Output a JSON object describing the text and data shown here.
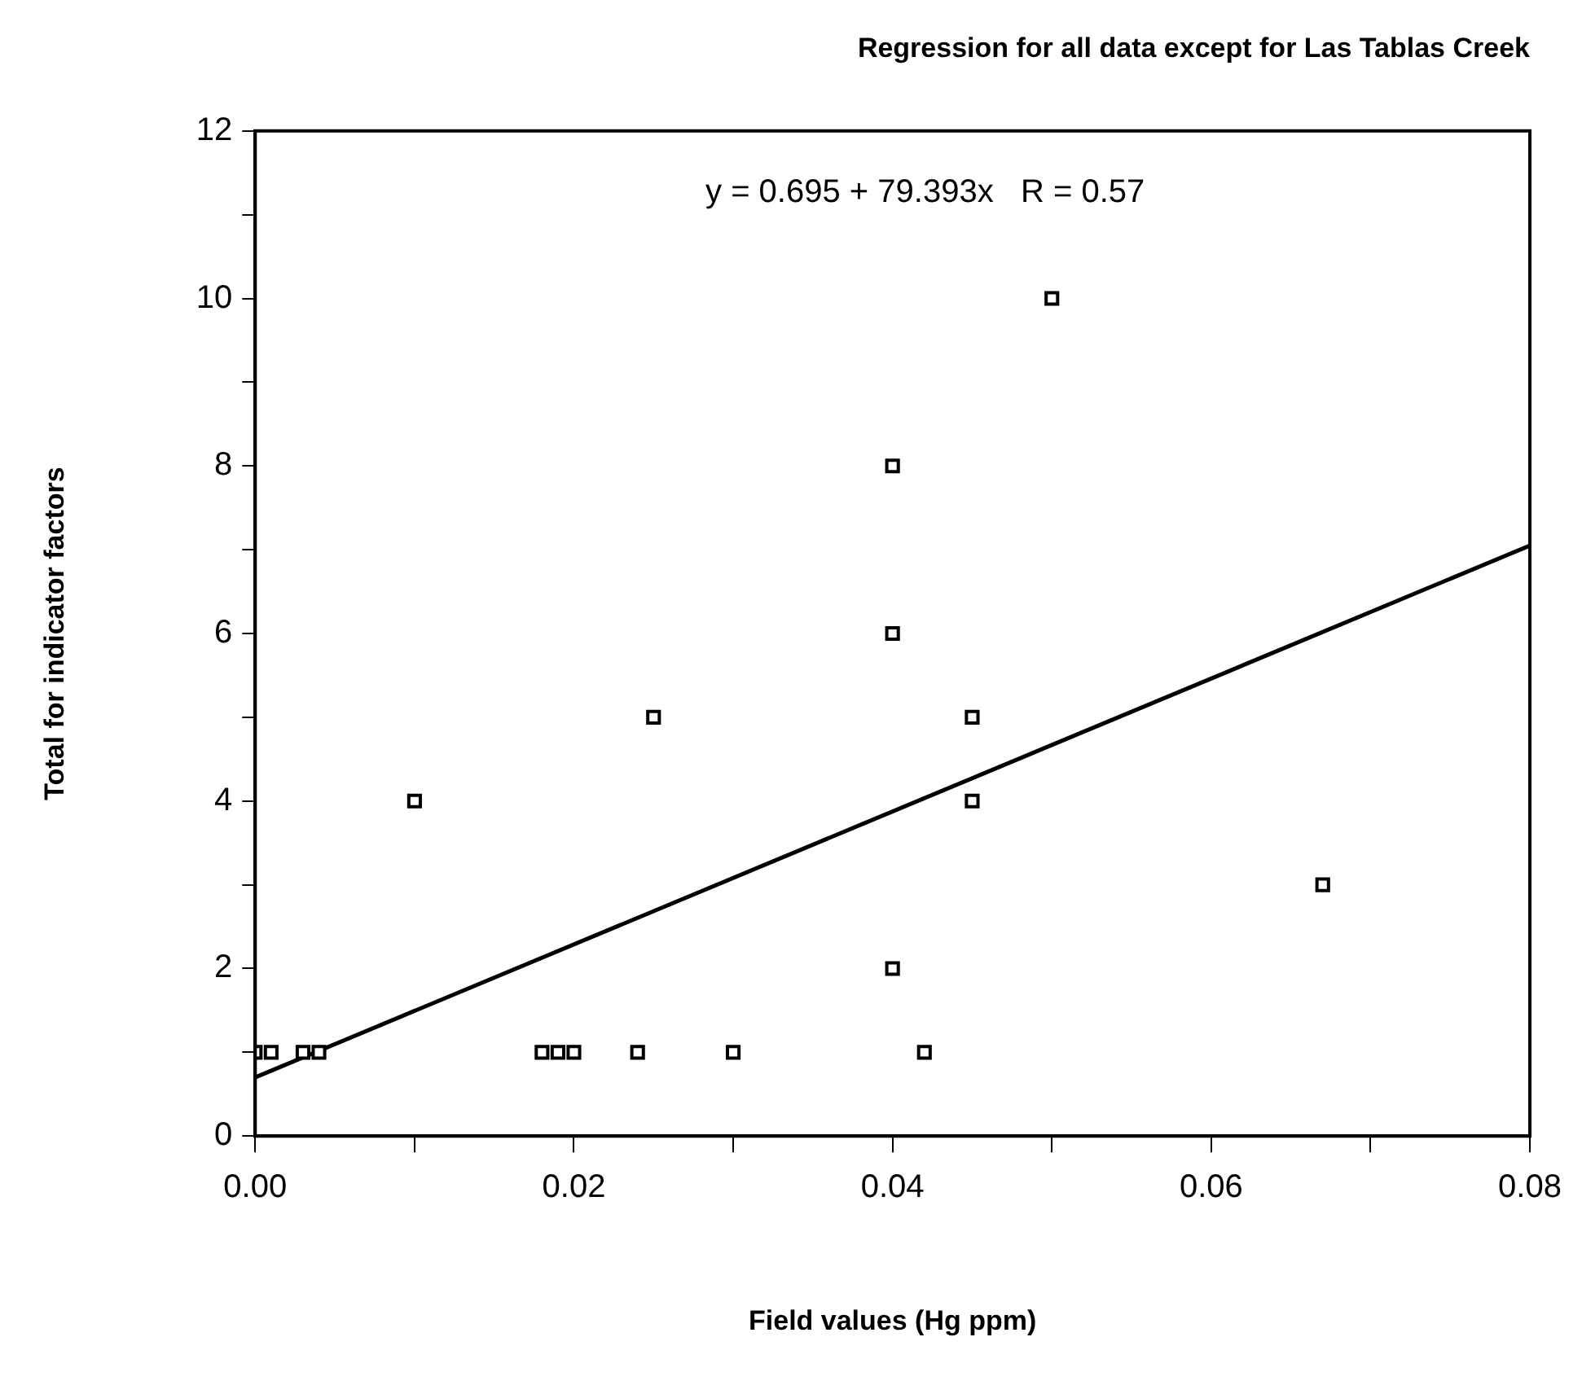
{
  "chart_data": {
    "type": "scatter",
    "title": "Regression for all data except for Las Tablas Creek",
    "xlabel": "Field values (Hg ppm)",
    "ylabel": "Total for indicator factors",
    "annotations": [
      "y = 0.695 + 79.393x   R = 0.57"
    ],
    "series": [
      {
        "type": "scatter",
        "color": "#000000",
        "marker": "square",
        "x": [
          0,
          0.001,
          0.003,
          0.004,
          0.018,
          0.019,
          0.02,
          0.024,
          0.03,
          0.042,
          0.04,
          0.04,
          0.04,
          0.045,
          0.045,
          0.05,
          0.025,
          0.01,
          0.067
        ],
        "values": [
          1,
          1,
          1,
          1,
          1,
          1,
          1,
          1,
          1,
          1,
          2,
          6,
          8,
          4,
          5,
          10,
          5,
          4,
          3
        ]
      },
      {
        "type": "line",
        "color": "#000000",
        "marker": "none",
        "x": [
          0,
          0.08
        ],
        "values": [
          0.7,
          7.05
        ]
      }
    ],
    "xlim": [
      0,
      0.08
    ],
    "ylim": [
      0,
      12
    ],
    "xticks": [
      {
        "value": 0,
        "label": "0.00"
      },
      {
        "value": 0.01,
        "label": null
      },
      {
        "value": 0.02,
        "label": "0.02"
      },
      {
        "value": 0.03,
        "label": null
      },
      {
        "value": 0.04,
        "label": "0.04"
      },
      {
        "value": 0.05,
        "label": null
      },
      {
        "value": 0.06,
        "label": "0.06"
      },
      {
        "value": 0.07,
        "label": null
      },
      {
        "value": 0.08,
        "label": "0.08"
      }
    ],
    "yticks": [
      0,
      {
        "value": 1,
        "label": null
      },
      2,
      {
        "value": 3,
        "label": null
      },
      4,
      {
        "value": 5,
        "label": null
      },
      6,
      {
        "value": 7,
        "label": null
      },
      8,
      {
        "value": 9,
        "label": null
      },
      10,
      {
        "value": 11,
        "label": null
      },
      12
    ],
    "grid": false,
    "legend": false
  }
}
